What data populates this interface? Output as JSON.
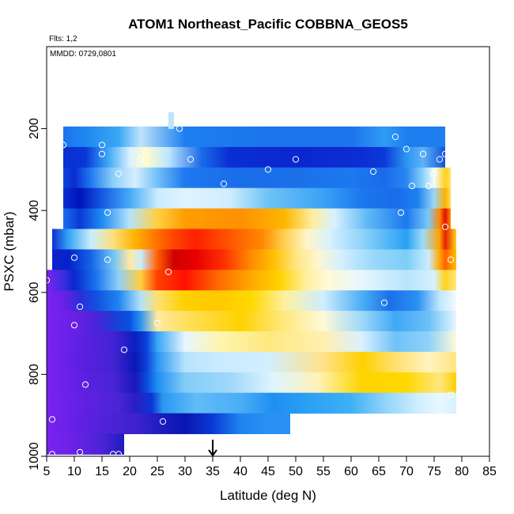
{
  "chart_data": {
    "type": "heatmap",
    "title": "ATOM1 Northeast_Pacific COBBNA_GEOS5",
    "annotations": [
      "Flts: 1,2",
      "MMDD: 0729,0801"
    ],
    "xlabel": "Latitude (deg N)",
    "ylabel": "PSXC (mbar)",
    "xlim": [
      5,
      85
    ],
    "ylim": [
      1000,
      0
    ],
    "x_ticks": [
      5,
      10,
      15,
      20,
      25,
      30,
      35,
      40,
      45,
      50,
      55,
      60,
      65,
      70,
      75,
      80,
      85
    ],
    "y_ticks": [
      200,
      400,
      600,
      800,
      1000
    ],
    "marker_latitude": 35,
    "rows": [
      {
        "p": 220,
        "x0": 8,
        "x1": 77,
        "stops": [
          [
            8,
            "#1e73ee"
          ],
          [
            12,
            "#1e88f0"
          ],
          [
            18,
            "#3aa7f5"
          ],
          [
            22,
            "#bfe4fb"
          ],
          [
            30,
            "#1d7fef"
          ],
          [
            45,
            "#1c74ec"
          ],
          [
            60,
            "#1c74ec"
          ],
          [
            66,
            "#2f9cf4"
          ],
          [
            70,
            "#1e7eef"
          ],
          [
            77,
            "#1e7eef"
          ]
        ]
      },
      {
        "p": 270,
        "x0": 8,
        "x1": 77,
        "stops": [
          [
            8,
            "#0a2fcf"
          ],
          [
            12,
            "#0836d8"
          ],
          [
            16,
            "#38a6f5"
          ],
          [
            20,
            "#d9f0ff"
          ],
          [
            23,
            "#fffcd0"
          ],
          [
            27,
            "#bde6ff"
          ],
          [
            33,
            "#1a6ae8"
          ],
          [
            38,
            "#0b2ed3"
          ],
          [
            50,
            "#0b27cf"
          ],
          [
            62,
            "#0c2ed4"
          ],
          [
            66,
            "#0b3ad8"
          ],
          [
            70,
            "#2a95f3"
          ],
          [
            73,
            "#5db3f5"
          ],
          [
            77,
            "#0f52de"
          ]
        ]
      },
      {
        "p": 320,
        "x0": 8,
        "x1": 78,
        "stops": [
          [
            8,
            "#0e46dc"
          ],
          [
            10,
            "#0a2bd0"
          ],
          [
            13,
            "#1f7af0"
          ],
          [
            17,
            "#8ccff8"
          ],
          [
            21,
            "#d7efff"
          ],
          [
            25,
            "#72c0f6"
          ],
          [
            30,
            "#1e78ee"
          ],
          [
            40,
            "#1a6de9"
          ],
          [
            50,
            "#1b70ea"
          ],
          [
            60,
            "#1d78ee"
          ],
          [
            66,
            "#1a6be9"
          ],
          [
            70,
            "#2787f1"
          ],
          [
            73,
            "#8fd2fa"
          ],
          [
            75,
            "#f4fbff"
          ],
          [
            77,
            "#ffd21a"
          ],
          [
            78,
            "#ffe46a"
          ]
        ]
      },
      {
        "p": 370,
        "x0": 8,
        "x1": 78,
        "stops": [
          [
            8,
            "#0a2fd2"
          ],
          [
            11,
            "#0014b8"
          ],
          [
            15,
            "#1459e3"
          ],
          [
            20,
            "#45aaf5"
          ],
          [
            25,
            "#c8ebff"
          ],
          [
            30,
            "#e0f4ff"
          ],
          [
            38,
            "#d0eeff"
          ],
          [
            45,
            "#6ec2f7"
          ],
          [
            55,
            "#3aa2f4"
          ],
          [
            62,
            "#1c77ee"
          ],
          [
            68,
            "#1a6be9"
          ],
          [
            72,
            "#1e80f0"
          ],
          [
            75,
            "#9ad6f9"
          ],
          [
            77,
            "#ffb000"
          ],
          [
            78,
            "#ffe050"
          ]
        ]
      },
      {
        "p": 420,
        "x0": 8,
        "x1": 78,
        "stops": [
          [
            8,
            "#1a70ea"
          ],
          [
            11,
            "#0a38d6"
          ],
          [
            15,
            "#1f8bf2"
          ],
          [
            20,
            "#b5e3fb"
          ],
          [
            25,
            "#ffd040"
          ],
          [
            30,
            "#ff9e00"
          ],
          [
            40,
            "#ff9000"
          ],
          [
            48,
            "#ffb600"
          ],
          [
            53,
            "#ffeea0"
          ],
          [
            57,
            "#d9f1ff"
          ],
          [
            63,
            "#5fb8f6"
          ],
          [
            70,
            "#1d78ee"
          ],
          [
            74,
            "#7ac8f7"
          ],
          [
            76,
            "#ff8800"
          ],
          [
            77,
            "#e01000"
          ],
          [
            78,
            "#ff9000"
          ]
        ]
      },
      {
        "p": 470,
        "x0": 6,
        "x1": 79,
        "stops": [
          [
            6,
            "#0b31d3"
          ],
          [
            9,
            "#38a5f5"
          ],
          [
            13,
            "#c9edff"
          ],
          [
            17,
            "#ffe07a"
          ],
          [
            21,
            "#ffb300"
          ],
          [
            24,
            "#ff8000"
          ],
          [
            28,
            "#ff4400"
          ],
          [
            32,
            "#ff2000"
          ],
          [
            38,
            "#ff5500"
          ],
          [
            44,
            "#ff8a00"
          ],
          [
            48,
            "#ffd050"
          ],
          [
            52,
            "#fff5c8"
          ],
          [
            56,
            "#d8f2ff"
          ],
          [
            62,
            "#8fd3fa"
          ],
          [
            70,
            "#28a0f4"
          ],
          [
            73,
            "#9fdcfa"
          ],
          [
            76,
            "#ffa000"
          ],
          [
            77,
            "#e62000"
          ],
          [
            79,
            "#ffd21a"
          ]
        ]
      },
      {
        "p": 520,
        "x0": 6,
        "x1": 79,
        "stops": [
          [
            6,
            "#0b23cc"
          ],
          [
            9,
            "#0622cc"
          ],
          [
            13,
            "#1364e6"
          ],
          [
            17,
            "#6fc3f6"
          ],
          [
            20,
            "#ffe9a0"
          ],
          [
            22,
            "#c9edff"
          ],
          [
            25,
            "#ff6000"
          ],
          [
            28,
            "#d00000"
          ],
          [
            32,
            "#e80000"
          ],
          [
            37,
            "#ff3000"
          ],
          [
            42,
            "#ff8c00"
          ],
          [
            46,
            "#ffc000"
          ],
          [
            50,
            "#ffe680"
          ],
          [
            54,
            "#fff6d0"
          ],
          [
            58,
            "#d6f0ff"
          ],
          [
            64,
            "#9ad8fa"
          ],
          [
            70,
            "#7ccdf8"
          ],
          [
            74,
            "#c9edff"
          ],
          [
            76,
            "#ffa800"
          ],
          [
            77,
            "#ff6000"
          ],
          [
            79,
            "#ffc000"
          ]
        ]
      },
      {
        "p": 570,
        "x0": 5,
        "x1": 79,
        "stops": [
          [
            5,
            "#7a22f0"
          ],
          [
            8,
            "#3a2ee0"
          ],
          [
            10,
            "#0a26cf"
          ],
          [
            14,
            "#1a75ee"
          ],
          [
            18,
            "#8fd0f8"
          ],
          [
            22,
            "#ffd040"
          ],
          [
            25,
            "#ff4000"
          ],
          [
            30,
            "#ff1000"
          ],
          [
            36,
            "#ff6a00"
          ],
          [
            42,
            "#ffa800"
          ],
          [
            47,
            "#ffd200"
          ],
          [
            52,
            "#fff0a0"
          ],
          [
            56,
            "#fffad8"
          ],
          [
            62,
            "#e6f6ff"
          ],
          [
            70,
            "#b9e4fb"
          ],
          [
            75,
            "#d6f1ff"
          ],
          [
            77,
            "#ffd21a"
          ],
          [
            79,
            "#ffe680"
          ]
        ]
      },
      {
        "p": 620,
        "x0": 5,
        "x1": 79,
        "stops": [
          [
            5,
            "#7a22f0"
          ],
          [
            8,
            "#6b20e8"
          ],
          [
            11,
            "#2b2ed8"
          ],
          [
            14,
            "#1250e0"
          ],
          [
            18,
            "#1e85f0"
          ],
          [
            22,
            "#b2e2fb"
          ],
          [
            25,
            "#ffe070"
          ],
          [
            30,
            "#ffd000"
          ],
          [
            36,
            "#ffc800"
          ],
          [
            42,
            "#ffd800"
          ],
          [
            48,
            "#fff0a0"
          ],
          [
            55,
            "#cfeeff"
          ],
          [
            62,
            "#4aaef5"
          ],
          [
            67,
            "#1c6fea"
          ],
          [
            72,
            "#2a90f3"
          ],
          [
            76,
            "#bfe7ff"
          ],
          [
            79,
            "#f4fbff"
          ]
        ]
      },
      {
        "p": 670,
        "x0": 5,
        "x1": 79,
        "stops": [
          [
            5,
            "#7a22f0"
          ],
          [
            10,
            "#6a1fe6"
          ],
          [
            14,
            "#4a25d8"
          ],
          [
            17,
            "#1e3cd6"
          ],
          [
            20,
            "#0a50e0"
          ],
          [
            22,
            "#2a95f3"
          ],
          [
            25,
            "#ffe9a0"
          ],
          [
            30,
            "#ffe060"
          ],
          [
            40,
            "#ffd200"
          ],
          [
            48,
            "#ffe880"
          ],
          [
            55,
            "#fff8d8"
          ],
          [
            62,
            "#9dd8fa"
          ],
          [
            68,
            "#40a8f5"
          ],
          [
            74,
            "#6cc0f6"
          ],
          [
            79,
            "#e9f7ff"
          ]
        ]
      },
      {
        "p": 720,
        "x0": 5,
        "x1": 79,
        "stops": [
          [
            5,
            "#7a22f0"
          ],
          [
            12,
            "#5a20e0"
          ],
          [
            17,
            "#4422d4"
          ],
          [
            21,
            "#0c1fc0"
          ],
          [
            23,
            "#0a40db"
          ],
          [
            25,
            "#3aa6f5"
          ],
          [
            30,
            "#e6f6ff"
          ],
          [
            36,
            "#fff5b0"
          ],
          [
            45,
            "#ffe880"
          ],
          [
            55,
            "#fff0b0"
          ],
          [
            62,
            "#d9f1ff"
          ],
          [
            68,
            "#6fc2f7"
          ],
          [
            74,
            "#8fd1fa"
          ],
          [
            79,
            "#fffad8"
          ]
        ]
      },
      {
        "p": 770,
        "x0": 5,
        "x1": 79,
        "stops": [
          [
            5,
            "#7a22f0"
          ],
          [
            12,
            "#5820de"
          ],
          [
            17,
            "#4423d2"
          ],
          [
            21,
            "#0a18b8"
          ],
          [
            23,
            "#0d3ed8"
          ],
          [
            25,
            "#2a95f3"
          ],
          [
            30,
            "#b6e3fb"
          ],
          [
            36,
            "#c9ebff"
          ],
          [
            45,
            "#d2efff"
          ],
          [
            55,
            "#ffe28a"
          ],
          [
            62,
            "#ffd000"
          ],
          [
            68,
            "#ffe070"
          ],
          [
            74,
            "#fff3c0"
          ],
          [
            79,
            "#ffe480"
          ]
        ]
      },
      {
        "p": 820,
        "x0": 5,
        "x1": 79,
        "stops": [
          [
            5,
            "#7a22f0"
          ],
          [
            12,
            "#5c20e0"
          ],
          [
            17,
            "#4824d6"
          ],
          [
            21,
            "#1a18b8"
          ],
          [
            23,
            "#0c48dc"
          ],
          [
            25,
            "#1e8ff2"
          ],
          [
            30,
            "#83cdf8"
          ],
          [
            38,
            "#9fd8fa"
          ],
          [
            46,
            "#dff4ff"
          ],
          [
            54,
            "#fff2b8"
          ],
          [
            62,
            "#ffd400"
          ],
          [
            70,
            "#ffd800"
          ],
          [
            76,
            "#ffe680"
          ],
          [
            79,
            "#ffcf00"
          ]
        ]
      },
      {
        "p": 870,
        "x0": 5,
        "x1": 79,
        "stops": [
          [
            5,
            "#7a22f0"
          ],
          [
            12,
            "#6020e2"
          ],
          [
            18,
            "#4a24d6"
          ],
          [
            21,
            "#2a1ec6"
          ],
          [
            24,
            "#0a36d4"
          ],
          [
            26,
            "#2a97f3"
          ],
          [
            32,
            "#62bbf6"
          ],
          [
            40,
            "#4aaef5"
          ],
          [
            46,
            "#1e8ff2"
          ],
          [
            52,
            "#2aa0f4"
          ],
          [
            60,
            "#3fb0f6"
          ],
          [
            66,
            "#8fd3fa"
          ],
          [
            72,
            "#cdeeff"
          ],
          [
            76,
            "#eaf8ff"
          ],
          [
            79,
            "#d6f1ff"
          ]
        ]
      },
      {
        "p": 920,
        "x0": 5,
        "x1": 49,
        "stops": [
          [
            5,
            "#7a22f0"
          ],
          [
            10,
            "#6620e4"
          ],
          [
            17,
            "#4a23d6"
          ],
          [
            22,
            "#3a22cc"
          ],
          [
            26,
            "#1a1cbc"
          ],
          [
            30,
            "#0a16b0"
          ],
          [
            35,
            "#0a3ad6"
          ],
          [
            40,
            "#1e84f0"
          ],
          [
            45,
            "#2a90f3"
          ],
          [
            49,
            "#2a8ef2"
          ]
        ]
      },
      {
        "p": 970,
        "x0": 5,
        "x1": 19,
        "stops": [
          [
            5,
            "#7a22f0"
          ],
          [
            10,
            "#6a21e6"
          ],
          [
            15,
            "#4a24d6"
          ],
          [
            18,
            "#2a1ec6"
          ],
          [
            19,
            "#1e1cbf"
          ]
        ]
      },
      {
        "p": 180,
        "x0": 27,
        "x1": 28,
        "stops": [
          [
            27,
            "#bfe4fb"
          ],
          [
            28,
            "#bfe4fb"
          ]
        ]
      }
    ],
    "obs_points": [
      [
        8,
        240
      ],
      [
        15,
        240
      ],
      [
        15,
        262
      ],
      [
        29,
        200
      ],
      [
        18,
        310
      ],
      [
        22,
        275
      ],
      [
        31,
        275
      ],
      [
        45,
        300
      ],
      [
        50,
        275
      ],
      [
        64,
        305
      ],
      [
        68,
        220
      ],
      [
        70,
        250
      ],
      [
        73,
        262
      ],
      [
        76,
        275
      ],
      [
        77,
        262
      ],
      [
        75,
        310
      ],
      [
        71,
        340
      ],
      [
        74,
        340
      ],
      [
        37,
        335
      ],
      [
        16,
        405
      ],
      [
        69,
        405
      ],
      [
        77,
        440
      ],
      [
        10,
        515
      ],
      [
        16,
        520
      ],
      [
        27,
        550
      ],
      [
        78,
        520
      ],
      [
        5,
        570
      ],
      [
        11,
        635
      ],
      [
        66,
        625
      ],
      [
        10,
        680
      ],
      [
        25,
        675
      ],
      [
        19,
        740
      ],
      [
        12,
        825
      ],
      [
        78,
        850
      ],
      [
        6,
        910
      ],
      [
        26,
        915
      ],
      [
        6,
        995
      ],
      [
        11,
        990
      ],
      [
        17,
        995
      ],
      [
        18,
        995
      ]
    ]
  }
}
